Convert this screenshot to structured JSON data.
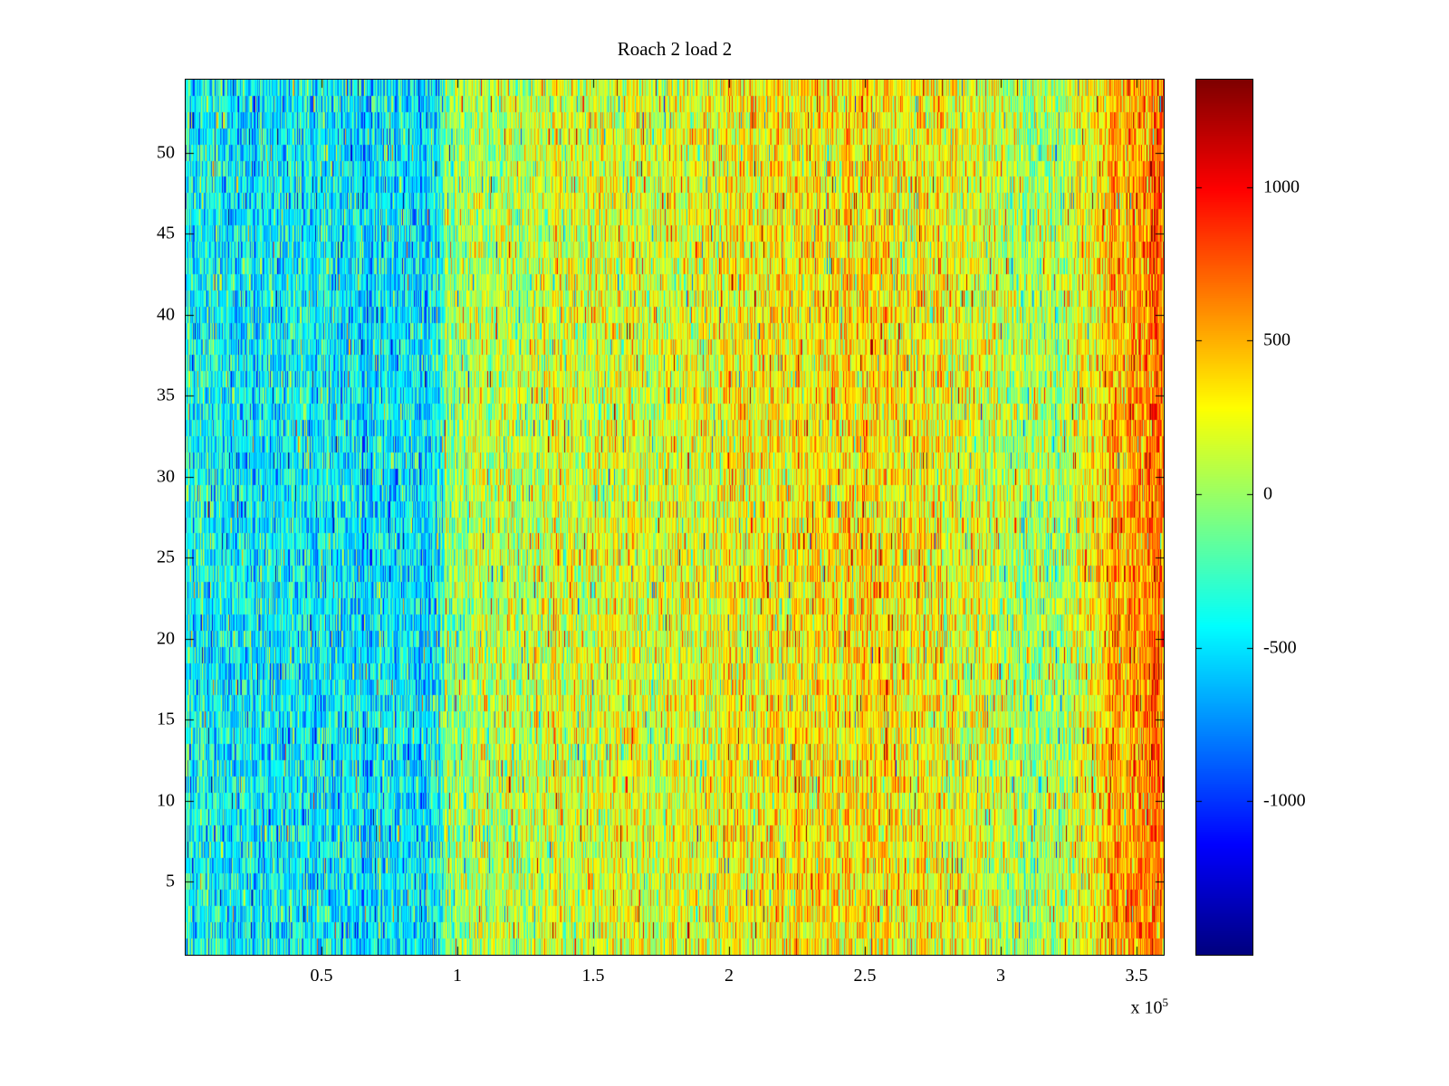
{
  "chart_data": {
    "type": "heatmap",
    "title": "Roach 2 load 2",
    "xlabel": "",
    "ylabel": "",
    "x_range": [
      0,
      360000
    ],
    "y_range": [
      0.5,
      54.5
    ],
    "x_ticks": [
      50000,
      100000,
      150000,
      200000,
      250000,
      300000,
      350000
    ],
    "x_tick_labels": [
      "0.5",
      "1",
      "1.5",
      "2",
      "2.5",
      "3",
      "3.5"
    ],
    "x_exponent_label": {
      "prefix": "x 10",
      "exponent": "5"
    },
    "y_ticks": [
      5,
      10,
      15,
      20,
      25,
      30,
      35,
      40,
      45,
      50
    ],
    "y_tick_labels": [
      "5",
      "10",
      "15",
      "20",
      "25",
      "30",
      "35",
      "40",
      "45",
      "50"
    ],
    "grid": false,
    "legend": "none",
    "colormap": "jet",
    "color_range": [
      -1500,
      1350
    ],
    "colorbar_ticks": [
      1000,
      500,
      0,
      -500,
      -1000
    ],
    "colorbar_tick_labels": [
      "1000",
      "500",
      "0",
      "-500",
      "-1000"
    ],
    "rows": 54,
    "cols": 1080,
    "mean_profile": [
      [
        0.0,
        -350
      ],
      [
        0.03,
        -430
      ],
      [
        0.1,
        -450
      ],
      [
        0.18,
        -500
      ],
      [
        0.255,
        -470
      ],
      [
        0.268,
        -60
      ],
      [
        0.3,
        60
      ],
      [
        0.35,
        110
      ],
      [
        0.45,
        190
      ],
      [
        0.55,
        240
      ],
      [
        0.62,
        290
      ],
      [
        0.68,
        330
      ],
      [
        0.72,
        290
      ],
      [
        0.78,
        240
      ],
      [
        0.83,
        130
      ],
      [
        0.86,
        20
      ],
      [
        0.895,
        40
      ],
      [
        0.92,
        260
      ],
      [
        0.95,
        480
      ],
      [
        1.0,
        660
      ]
    ],
    "column_noise_std": 110,
    "cell_noise_std": 235,
    "spike_probability": 0.04,
    "seed": 1337
  }
}
